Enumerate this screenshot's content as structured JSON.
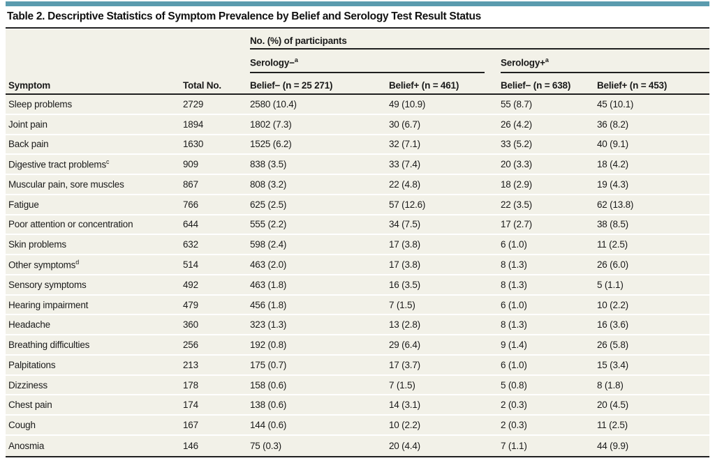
{
  "title": "Table 2. Descriptive Statistics of Symptom Prevalence by Belief and Serology Test Result Status",
  "table": {
    "group_header": "No. (%) of participants",
    "serology_negative": {
      "label": "Serology−",
      "sup": "a"
    },
    "serology_positive": {
      "label": "Serology+",
      "sup": "a"
    },
    "columns": {
      "symptom": "Symptom",
      "total": "Total No.",
      "sneg_bneg": "Belief− (n = 25 271)",
      "sneg_bpos": "Belief+ (n = 461)",
      "spos_bneg": "Belief− (n = 638)",
      "spos_bpos": "Belief+ (n = 453)"
    },
    "rows": [
      {
        "symptom": "Sleep problems",
        "sup": "",
        "total": "2729",
        "values": [
          "2580 (10.4)",
          "49 (10.9)",
          "55 (8.7)",
          "45 (10.1)"
        ]
      },
      {
        "symptom": "Joint pain",
        "sup": "",
        "total": "1894",
        "values": [
          "1802 (7.3)",
          "30 (6.7)",
          "26 (4.2)",
          "36 (8.2)"
        ]
      },
      {
        "symptom": "Back pain",
        "sup": "",
        "total": "1630",
        "values": [
          "1525 (6.2)",
          "32 (7.1)",
          "33 (5.2)",
          "40 (9.1)"
        ]
      },
      {
        "symptom": "Digestive tract problems",
        "sup": "c",
        "total": "909",
        "values": [
          "838 (3.5)",
          "33 (7.4)",
          "20 (3.3)",
          "18 (4.2)"
        ]
      },
      {
        "symptom": "Muscular pain, sore muscles",
        "sup": "",
        "total": "867",
        "values": [
          "808 (3.2)",
          "22 (4.8)",
          "18 (2.9)",
          "19 (4.3)"
        ]
      },
      {
        "symptom": "Fatigue",
        "sup": "",
        "total": "766",
        "values": [
          "625 (2.5)",
          "57 (12.6)",
          "22 (3.5)",
          "62 (13.8)"
        ]
      },
      {
        "symptom": "Poor attention or concentration",
        "sup": "",
        "total": "644",
        "values": [
          "555 (2.2)",
          "34 (7.5)",
          "17 (2.7)",
          "38 (8.5)"
        ]
      },
      {
        "symptom": "Skin problems",
        "sup": "",
        "total": "632",
        "values": [
          "598 (2.4)",
          "17 (3.8)",
          "6 (1.0)",
          "11 (2.5)"
        ]
      },
      {
        "symptom": "Other symptoms",
        "sup": "d",
        "total": "514",
        "values": [
          "463 (2.0)",
          "17 (3.8)",
          "8 (1.3)",
          "26 (6.0)"
        ]
      },
      {
        "symptom": "Sensory symptoms",
        "sup": "",
        "total": "492",
        "values": [
          "463 (1.8)",
          "16 (3.5)",
          "8 (1.3)",
          "5 (1.1)"
        ]
      },
      {
        "symptom": "Hearing impairment",
        "sup": "",
        "total": "479",
        "values": [
          "456 (1.8)",
          "7 (1.5)",
          "6 (1.0)",
          "10 (2.2)"
        ]
      },
      {
        "symptom": "Headache",
        "sup": "",
        "total": "360",
        "values": [
          "323 (1.3)",
          "13 (2.8)",
          "8 (1.3)",
          "16 (3.6)"
        ]
      },
      {
        "symptom": "Breathing difficulties",
        "sup": "",
        "total": "256",
        "values": [
          "192 (0.8)",
          "29 (6.4)",
          "9 (1.4)",
          "26 (5.8)"
        ]
      },
      {
        "symptom": "Palpitations",
        "sup": "",
        "total": "213",
        "values": [
          "175 (0.7)",
          "17 (3.7)",
          "6 (1.0)",
          "15 (3.4)"
        ]
      },
      {
        "symptom": "Dizziness",
        "sup": "",
        "total": "178",
        "values": [
          "158 (0.6)",
          "7 (1.5)",
          "5 (0.8)",
          "8 (1.8)"
        ]
      },
      {
        "symptom": "Chest pain",
        "sup": "",
        "total": "174",
        "values": [
          "138 (0.6)",
          "14 (3.1)",
          "2 (0.3)",
          "20 (4.5)"
        ]
      },
      {
        "symptom": "Cough",
        "sup": "",
        "total": "167",
        "values": [
          "144 (0.6)",
          "10 (2.2)",
          "2 (0.3)",
          "11 (2.5)"
        ]
      },
      {
        "symptom": "Anosmia",
        "sup": "",
        "total": "146",
        "values": [
          "75 (0.3)",
          "20 (4.4)",
          "7 (1.1)",
          "44 (9.9)"
        ]
      }
    ]
  },
  "colors": {
    "accent_bar": "#5a9bae",
    "panel_bg": "#f2f1e8",
    "rule": "#1f1f1f",
    "text": "#1a1a1a",
    "row_separator": "#ffffff"
  }
}
